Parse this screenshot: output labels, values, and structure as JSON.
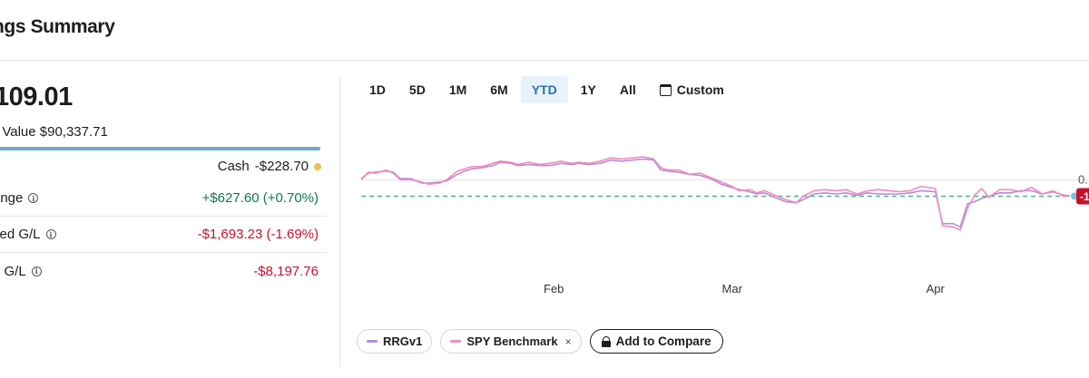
{
  "header": {
    "title": "ngs Summary"
  },
  "summary": {
    "total_value": "109.01",
    "market_value_label": "t Value",
    "market_value": "$90,337.71",
    "cash_label": "Cash",
    "cash_value": "-$228.70",
    "cash_dot_color": "#f2c14e",
    "allocation_bar_color": "#6ea8d3"
  },
  "metrics": [
    {
      "label": "ange",
      "value": "+$627.60 (+0.70%)",
      "tone": "pos",
      "info_icon": "info-icon"
    },
    {
      "label": "zed G/L",
      "value": "-$1,693.23 (-1.69%)",
      "tone": "neg",
      "info_icon": "info-icon"
    },
    {
      "label": "d G/L",
      "value": "-$8,197.76",
      "tone": "neg",
      "info_icon": "info-icon"
    }
  ],
  "range_tabs": [
    {
      "label": "1D",
      "active": false
    },
    {
      "label": "5D",
      "active": false
    },
    {
      "label": "1M",
      "active": false
    },
    {
      "label": "6M",
      "active": false
    },
    {
      "label": "YTD",
      "active": true
    },
    {
      "label": "1Y",
      "active": false
    },
    {
      "label": "All",
      "active": false
    },
    {
      "label": "Custom",
      "active": false,
      "icon": "calendar-icon"
    }
  ],
  "legend": {
    "series_1": {
      "label": "RRGv1",
      "color": "#b48be0"
    },
    "series_2": {
      "label": "SPY Benchmark",
      "color": "#f08cbb",
      "close_glyph": "×"
    },
    "compare_label": "Add to Compare",
    "compare_icon": "lock-icon"
  },
  "chart_data": {
    "type": "line",
    "x_ticks": [
      "Feb",
      "Mar",
      "Apr"
    ],
    "y_ticks": [
      "0."
    ],
    "end_label": "-1",
    "end_label_color": "#c8102e",
    "baseline_color": "#4fb38a",
    "x_domain": [
      0,
      100
    ],
    "y_domain": [
      -8,
      4
    ],
    "baseline_value": -1.5,
    "gridline_value": 0,
    "tick_positions": {
      "Feb": 27,
      "Mar": 52,
      "Apr": 80.5
    },
    "series": [
      {
        "name": "RRGv1",
        "color": "#b48be0",
        "x": [
          0,
          1,
          2,
          3.5,
          4.5,
          5.5,
          7,
          8.5,
          9.5,
          11,
          12,
          13.5,
          14.5,
          15.5,
          17,
          18.5,
          19.5,
          21,
          22,
          23.5,
          25,
          26.5,
          28,
          29.5,
          30.5,
          32,
          33.5,
          35,
          36.5,
          38,
          39.5,
          41,
          42,
          43,
          44.5,
          46,
          47.5,
          49,
          50.5,
          52,
          53,
          54.5,
          55.5,
          56.5,
          58,
          59.5,
          61,
          62,
          63.5,
          65,
          66.5,
          68,
          69.5,
          71,
          72.5,
          74,
          75.5,
          77,
          78.5,
          80.5,
          81.5,
          83,
          84,
          85,
          86,
          87,
          88,
          89.5,
          91,
          92.5,
          94,
          95.5,
          97,
          98.5,
          100
        ],
        "y": [
          0.1,
          0.6,
          0.7,
          0.8,
          0.7,
          0.1,
          0.1,
          -0.3,
          -0.3,
          -0.2,
          -0.1,
          0.5,
          0.8,
          1.0,
          1.1,
          1.3,
          1.6,
          1.5,
          1.3,
          1.4,
          1.3,
          1.3,
          1.5,
          1.4,
          1.5,
          1.4,
          1.5,
          1.8,
          1.7,
          1.8,
          1.9,
          1.8,
          0.9,
          0.8,
          0.7,
          0.5,
          0.4,
          0.1,
          -0.4,
          -0.7,
          -0.9,
          -1.1,
          -1.3,
          -1.2,
          -1.6,
          -2.0,
          -2.1,
          -1.8,
          -1.3,
          -1.2,
          -1.3,
          -1.2,
          -1.4,
          -1.2,
          -1.3,
          -1.3,
          -1.3,
          -1.2,
          -1.0,
          -1.1,
          -4.0,
          -4.0,
          -4.3,
          -2.2,
          -2.0,
          -1.7,
          -1.5,
          -1.2,
          -1.2,
          -1.0,
          -1.0,
          -1.3,
          -1.1,
          -1.4,
          -1.5
        ]
      },
      {
        "name": "SPY Benchmark",
        "color": "#f08cbb",
        "x": [
          0,
          1,
          2,
          3.5,
          4.5,
          5.5,
          7,
          8.5,
          9.5,
          11,
          12,
          13.5,
          14.5,
          15.5,
          17,
          18.5,
          19.5,
          21,
          22,
          23.5,
          25,
          26.5,
          28,
          29.5,
          30.5,
          32,
          33.5,
          35,
          36.5,
          38,
          39.5,
          41,
          42,
          43,
          44.5,
          46,
          47.5,
          49,
          50.5,
          52,
          53,
          54.5,
          55.5,
          56.5,
          58,
          59.5,
          61,
          62,
          63.5,
          65,
          66.5,
          68,
          69.5,
          71,
          72.5,
          74,
          75.5,
          77,
          78.5,
          80.5,
          81.5,
          83,
          84,
          85,
          86,
          87,
          88,
          89.5,
          91,
          92.5,
          94,
          95.5,
          97,
          98.5,
          100
        ],
        "y": [
          0.0,
          0.7,
          0.6,
          0.9,
          0.6,
          0.0,
          0.0,
          -0.2,
          -0.4,
          -0.3,
          0.0,
          0.8,
          1.0,
          1.2,
          1.2,
          1.5,
          1.7,
          1.6,
          1.4,
          1.6,
          1.4,
          1.5,
          1.7,
          1.5,
          1.6,
          1.5,
          1.7,
          2.0,
          1.9,
          2.0,
          2.1,
          1.9,
          1.1,
          0.9,
          0.9,
          0.5,
          0.6,
          0.2,
          -0.2,
          -0.6,
          -1.0,
          -0.9,
          -1.2,
          -1.0,
          -1.4,
          -1.8,
          -2.1,
          -1.5,
          -1.0,
          -0.9,
          -1.0,
          -0.9,
          -1.3,
          -1.0,
          -0.9,
          -1.0,
          -1.1,
          -1.0,
          -0.6,
          -0.8,
          -4.2,
          -4.3,
          -4.6,
          -2.6,
          -1.4,
          -0.8,
          -1.6,
          -0.9,
          -0.9,
          -1.1,
          -0.7,
          -1.3,
          -1.0,
          -1.5,
          -1.4
        ]
      }
    ]
  }
}
